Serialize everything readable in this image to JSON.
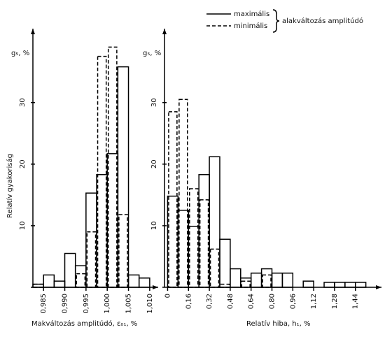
{
  "legend": {
    "entries": [
      "maximális",
      "minimális"
    ],
    "title": "alakváltozás amplitúdó"
  },
  "chart_data": [
    {
      "type": "histogram",
      "y_title": "Relatív gyakoriság",
      "y_label": "g₅, %",
      "x_title": "Makváltozás amplitúdó, ε₀₁, %",
      "bins": [
        0.9825,
        0.985,
        0.9875,
        0.99,
        0.9925,
        0.995,
        0.9975,
        1.0,
        1.0025,
        1.005,
        1.0075,
        1.01
      ],
      "series": [
        {
          "name": "maximális",
          "dash": false,
          "values": [
            0.5,
            2,
            1,
            5.5,
            3.5,
            15.3,
            18.3,
            21.7,
            35.8,
            2,
            1.5
          ]
        },
        {
          "name": "minimális",
          "dash": true,
          "values": [
            0.5,
            0,
            0,
            0,
            2.2,
            9,
            37.5,
            39,
            11.8,
            0,
            0
          ]
        }
      ],
      "xlim": [
        0.982,
        1.012
      ],
      "ylim": [
        0,
        42
      ],
      "xticks": [
        {
          "value": 0.985,
          "label": "0,985"
        },
        {
          "value": 0.99,
          "label": "0,990"
        },
        {
          "value": 0.995,
          "label": "0,995"
        },
        {
          "value": 1.0,
          "label": "1,000"
        },
        {
          "value": 1.005,
          "label": "1,005"
        },
        {
          "value": 1.01,
          "label": "1,010"
        }
      ],
      "yticks": [
        10,
        20,
        30
      ]
    },
    {
      "type": "histogram",
      "y_label": "g₅, %",
      "x_title": "Relatív hiba, h₁, %",
      "bins": [
        0,
        0.08,
        0.16,
        0.24,
        0.32,
        0.4,
        0.48,
        0.56,
        0.64,
        0.72,
        0.8,
        0.88,
        0.96,
        1.04,
        1.12,
        1.2,
        1.28,
        1.36,
        1.44,
        1.52
      ],
      "series": [
        {
          "dash": false,
          "values": [
            14.8,
            12.5,
            9.9,
            18.3,
            21.2,
            7.8,
            3,
            1.5,
            2.3,
            3,
            2.3,
            2.3,
            0,
            1,
            0,
            0.8,
            0.8,
            0.8,
            0.8
          ]
        },
        {
          "dash": true,
          "values": [
            28.5,
            30.5,
            16,
            14.2,
            6.2,
            0.5,
            0,
            1,
            0,
            2,
            0,
            0,
            0,
            0,
            0,
            0,
            0,
            0,
            0
          ]
        }
      ],
      "xlim": [
        -0.04,
        1.64
      ],
      "ylim": [
        0,
        42
      ],
      "xticks": [
        0,
        {
          "value": 0.16,
          "label": "0,16"
        },
        {
          "value": 0.32,
          "label": "0,32"
        },
        {
          "value": 0.48,
          "label": "0,48"
        },
        {
          "value": 0.64,
          "label": "0,64"
        },
        {
          "value": 0.8,
          "label": "0,80"
        },
        {
          "value": 0.96,
          "label": "0,96"
        },
        {
          "value": 1.12,
          "label": "1,12"
        },
        {
          "value": 1.28,
          "label": "1,28"
        },
        {
          "value": 1.44,
          "label": "1,44"
        }
      ],
      "yticks": [
        10,
        20,
        30
      ]
    }
  ]
}
